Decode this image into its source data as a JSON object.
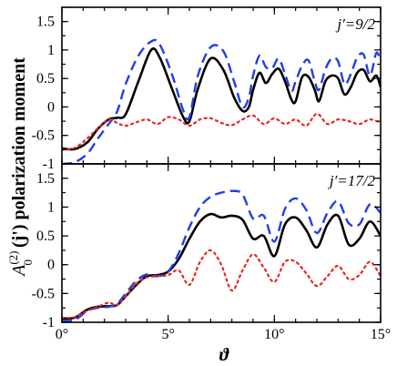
{
  "chart_data": {
    "type": "line",
    "ylabel": {
      "base": "A",
      "superscript": "(2)",
      "subscript": "0",
      "suffix": " (j') polarization moment"
    },
    "xlabel": "ϑ",
    "shared_x_axis": {
      "xlim": [
        0,
        15
      ],
      "ticks": [
        0,
        5,
        10,
        15
      ],
      "tick_labels": [
        "0°",
        "5°",
        "10°",
        "15°"
      ],
      "minor_tick_step": 1
    },
    "grid": false,
    "panels": [
      {
        "label": "j′=9/2",
        "ylim": [
          -1,
          1.75
        ],
        "yticks": [
          -1,
          -0.5,
          0,
          0.5,
          1,
          1.5
        ],
        "ytick_labels": [
          "-1",
          "-0.5",
          "0",
          "0.5",
          "1",
          "1.5"
        ],
        "series": [
          {
            "style": "solid",
            "color": "#000000",
            "x": [
              0,
              0.6,
              1.2,
              1.7,
              2.2,
              2.6,
              3.0,
              3.6,
              4.2,
              4.6,
              5.2,
              5.7,
              6.0,
              6.4,
              7.0,
              7.6,
              8.1,
              8.5,
              8.8,
              9.0,
              9.3,
              9.6,
              9.9,
              10.2,
              10.5,
              10.8,
              11.0,
              11.3,
              11.6,
              11.9,
              12.1,
              12.4,
              12.7,
              13.0,
              13.3,
              13.6,
              13.9,
              14.2,
              14.5,
              14.8,
              15.0
            ],
            "y": [
              -0.73,
              -0.74,
              -0.62,
              -0.38,
              -0.22,
              -0.19,
              -0.13,
              0.45,
              1.0,
              0.87,
              0.3,
              -0.17,
              -0.25,
              0.32,
              0.85,
              0.65,
              0.17,
              -0.07,
              0.0,
              0.3,
              0.6,
              0.42,
              0.58,
              0.67,
              0.45,
              0.13,
              0.1,
              0.52,
              0.53,
              0.3,
              0.1,
              0.45,
              0.55,
              0.5,
              0.22,
              0.35,
              0.6,
              0.65,
              0.45,
              0.55,
              0.35
            ]
          },
          {
            "style": "dashed",
            "color": "#1f3fe8",
            "x": [
              0,
              0.6,
              1.2,
              1.7,
              2.2,
              2.6,
              3.0,
              3.6,
              4.2,
              4.6,
              5.2,
              5.7,
              6.0,
              6.4,
              7.0,
              7.6,
              8.1,
              8.5,
              8.8,
              9.0,
              9.3,
              9.6,
              9.9,
              10.2,
              10.5,
              10.8,
              11.0,
              11.3,
              11.6,
              11.9,
              12.1,
              12.4,
              12.7,
              13.0,
              13.3,
              13.6,
              13.9,
              14.2,
              14.5,
              14.8,
              15.0
            ],
            "y": [
              -1.0,
              -0.97,
              -0.82,
              -0.55,
              -0.3,
              -0.08,
              0.4,
              0.9,
              1.15,
              1.1,
              0.55,
              -0.05,
              -0.18,
              0.55,
              1.05,
              0.98,
              0.45,
              0.0,
              0.17,
              0.55,
              0.9,
              0.7,
              0.68,
              0.85,
              0.58,
              0.28,
              0.45,
              0.72,
              0.82,
              0.45,
              0.3,
              0.66,
              0.85,
              0.8,
              0.4,
              0.58,
              0.87,
              0.92,
              0.55,
              0.95,
              0.8
            ]
          },
          {
            "style": "dotted",
            "color": "#e8261e",
            "x": [
              0,
              0.6,
              1.2,
              1.7,
              2.2,
              2.6,
              3.0,
              3.5,
              4.0,
              4.5,
              5.0,
              5.5,
              6.0,
              6.5,
              7.0,
              7.5,
              8.0,
              8.5,
              9.0,
              9.5,
              10.0,
              10.5,
              11.0,
              11.5,
              12.0,
              12.5,
              13.0,
              13.5,
              14.0,
              14.5,
              15.0
            ],
            "y": [
              -0.75,
              -0.72,
              -0.55,
              -0.37,
              -0.22,
              -0.28,
              -0.33,
              -0.27,
              -0.22,
              -0.3,
              -0.18,
              -0.22,
              -0.33,
              -0.22,
              -0.2,
              -0.28,
              -0.32,
              -0.22,
              -0.15,
              -0.3,
              -0.2,
              -0.3,
              -0.22,
              -0.33,
              -0.12,
              -0.3,
              -0.22,
              -0.25,
              -0.3,
              -0.22,
              -0.28
            ]
          }
        ]
      },
      {
        "label": "j′=17/2",
        "ylim": [
          -1,
          1.75
        ],
        "yticks": [
          -1,
          -0.5,
          0,
          0.5,
          1,
          1.5
        ],
        "ytick_labels": [
          "-1",
          "-0.5",
          "0",
          "0.5",
          "1",
          "1.5"
        ],
        "series": [
          {
            "style": "solid",
            "color": "#000000",
            "x": [
              0,
              0.6,
              1.2,
              1.7,
              2.2,
              2.6,
              3.0,
              3.5,
              4.0,
              4.5,
              5.0,
              5.5,
              6.0,
              6.5,
              7.0,
              7.5,
              8.0,
              8.5,
              9.0,
              9.5,
              10.0,
              10.5,
              11.0,
              11.5,
              12.0,
              12.5,
              13.0,
              13.5,
              14.0,
              14.5,
              15.0
            ],
            "y": [
              -0.93,
              -0.92,
              -0.78,
              -0.73,
              -0.72,
              -0.7,
              -0.55,
              -0.35,
              -0.2,
              -0.18,
              -0.12,
              0.1,
              0.45,
              0.75,
              0.88,
              0.82,
              0.85,
              0.78,
              0.45,
              0.5,
              0.15,
              0.7,
              0.82,
              0.6,
              0.3,
              0.7,
              0.85,
              0.35,
              0.45,
              0.75,
              0.5
            ]
          },
          {
            "style": "dashed",
            "color": "#1f3fe8",
            "x": [
              0,
              0.6,
              1.2,
              1.7,
              2.2,
              2.6,
              3.0,
              3.5,
              4.0,
              4.5,
              5.0,
              5.5,
              6.0,
              6.5,
              7.0,
              7.5,
              8.0,
              8.5,
              9.0,
              9.5,
              10.0,
              10.5,
              11.0,
              11.5,
              12.0,
              12.5,
              13.0,
              13.5,
              14.0,
              14.5,
              15.0
            ],
            "y": [
              -0.97,
              -0.96,
              -0.8,
              -0.75,
              -0.73,
              -0.68,
              -0.5,
              -0.28,
              -0.17,
              -0.2,
              -0.12,
              0.2,
              0.65,
              1.0,
              1.18,
              1.25,
              1.28,
              1.22,
              0.8,
              0.85,
              0.4,
              0.97,
              1.15,
              0.95,
              0.55,
              0.9,
              1.1,
              0.72,
              0.7,
              1.05,
              0.9
            ]
          },
          {
            "style": "dotted",
            "color": "#e8261e",
            "x": [
              0,
              0.6,
              1.2,
              1.7,
              2.2,
              2.6,
              3.0,
              3.5,
              4.0,
              4.5,
              5.0,
              5.5,
              6.0,
              6.5,
              7.0,
              7.5,
              8.0,
              8.5,
              9.0,
              9.5,
              10.0,
              10.5,
              11.0,
              11.5,
              12.0,
              12.5,
              13.0,
              13.5,
              14.0,
              14.5,
              15.0
            ],
            "y": [
              -0.92,
              -0.91,
              -0.8,
              -0.73,
              -0.66,
              -0.7,
              -0.55,
              -0.33,
              -0.22,
              -0.2,
              -0.18,
              -0.1,
              -0.35,
              0.05,
              0.25,
              0.0,
              -0.45,
              -0.1,
              0.18,
              -0.05,
              -0.3,
              0.05,
              0.05,
              -0.15,
              -0.37,
              -0.2,
              -0.02,
              -0.25,
              -0.18,
              0.05,
              -0.2
            ]
          }
        ]
      }
    ]
  }
}
